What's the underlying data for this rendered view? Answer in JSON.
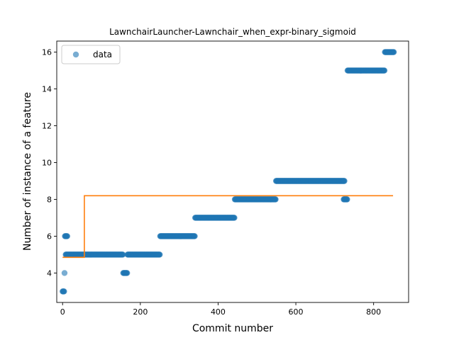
{
  "chart_data": {
    "type": "scatter",
    "title": "LawnchairLauncher-Lawnchair_when_expr-binary_sigmoid",
    "xlabel": "Commit number",
    "ylabel": "Number of instance of a feature",
    "xlim": [
      -15,
      890
    ],
    "ylim": [
      2.4,
      16.6
    ],
    "xticks": [
      0,
      200,
      400,
      600,
      800
    ],
    "yticks": [
      4,
      6,
      8,
      10,
      12,
      14,
      16
    ],
    "grid": false,
    "legend": {
      "position": "top-left",
      "entries": [
        "data"
      ]
    },
    "colors": {
      "data": "#1f77b4",
      "fit": "#ff7f0e"
    },
    "series": [
      {
        "name": "data",
        "kind": "points",
        "segments": [
          {
            "x_start": 0,
            "x_end": 4,
            "y": 3
          },
          {
            "x_start": 5,
            "x_end": 5,
            "y": 4
          },
          {
            "x_start": 6,
            "x_end": 12,
            "y": 6
          },
          {
            "x_start": 8,
            "x_end": 155,
            "y": 5
          },
          {
            "x_start": 156,
            "x_end": 166,
            "y": 4
          },
          {
            "x_start": 167,
            "x_end": 250,
            "y": 5
          },
          {
            "x_start": 251,
            "x_end": 340,
            "y": 6
          },
          {
            "x_start": 341,
            "x_end": 442,
            "y": 7
          },
          {
            "x_start": 443,
            "x_end": 548,
            "y": 8
          },
          {
            "x_start": 549,
            "x_end": 725,
            "y": 9
          },
          {
            "x_start": 723,
            "x_end": 732,
            "y": 8
          },
          {
            "x_start": 733,
            "x_end": 828,
            "y": 15
          },
          {
            "x_start": 829,
            "x_end": 852,
            "y": 16
          }
        ]
      },
      {
        "name": "",
        "kind": "line",
        "x": [
          0,
          56,
          56,
          850
        ],
        "y": [
          4.85,
          4.85,
          8.2,
          8.2
        ]
      }
    ]
  }
}
